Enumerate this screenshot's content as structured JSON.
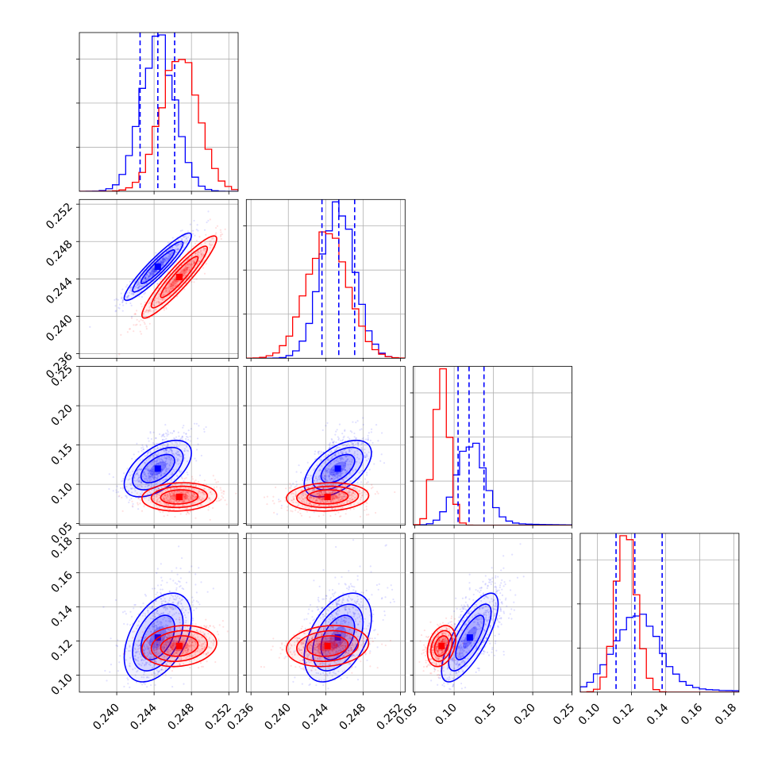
{
  "chart_data": {
    "type": "corner",
    "grid": true,
    "colors": {
      "set_a": "#0000ff",
      "set_b": "#ff0000"
    },
    "parameters": [
      {
        "range": [
          0.236,
          0.253
        ],
        "ticks": [
          0.24,
          0.244,
          0.248,
          0.252
        ],
        "tick_labels": [
          "0.240",
          "0.244",
          "0.248",
          "0.252"
        ]
      },
      {
        "range": [
          0.2355,
          0.2525
        ],
        "ticks": [
          0.236,
          0.24,
          0.244,
          0.248,
          0.252
        ],
        "tick_labels": [
          "0.236",
          "0.240",
          "0.244",
          "0.248",
          "0.252"
        ]
      },
      {
        "range": [
          0.048,
          0.25
        ],
        "ticks": [
          0.05,
          0.1,
          0.15,
          0.2,
          0.25
        ],
        "tick_labels": [
          "0.05",
          "0.10",
          "0.15",
          "0.20",
          "0.25"
        ]
      },
      {
        "range": [
          0.09,
          0.183
        ],
        "ticks": [
          0.1,
          0.12,
          0.14,
          0.16,
          0.18
        ],
        "tick_labels": [
          "0.10",
          "0.12",
          "0.14",
          "0.16",
          "0.18"
        ]
      }
    ],
    "series": [
      {
        "color": "#0000ff",
        "mean": [
          0.2444,
          0.2453,
          0.12,
          0.122
        ],
        "sd": [
          0.0018,
          0.0018,
          0.018,
          0.013
        ],
        "quantiles": [
          [
            0.2425,
            0.2444,
            0.2462
          ],
          [
            0.2436,
            0.2454,
            0.2471
          ],
          [
            0.105,
            0.119,
            0.138
          ],
          [
            0.111,
            0.122,
            0.138
          ]
        ],
        "corr": [
          [
            1.0,
            0.93,
            0.55,
            0.45
          ],
          [
            0.93,
            1.0,
            0.55,
            0.45
          ],
          [
            0.55,
            0.55,
            1.0,
            0.75
          ],
          [
            0.45,
            0.45,
            0.75,
            1.0
          ]
        ]
      },
      {
        "color": "#ff0000",
        "mean": [
          0.2467,
          0.2442,
          0.084,
          0.117
        ],
        "sd": [
          0.002,
          0.0022,
          0.009,
          0.006
        ],
        "corr": [
          [
            1.0,
            0.93,
            0.1,
            0.15
          ],
          [
            0.93,
            1.0,
            0.1,
            0.15
          ],
          [
            0.1,
            0.1,
            1.0,
            0.3
          ],
          [
            0.15,
            0.15,
            0.3,
            1.0
          ]
        ]
      }
    ]
  }
}
